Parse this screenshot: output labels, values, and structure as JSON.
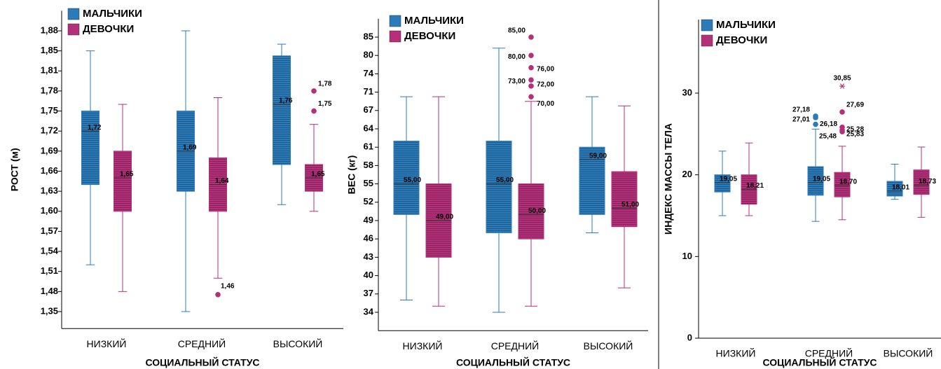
{
  "chart_data": [
    {
      "type": "boxplot",
      "y_label": "РОСТ (м)",
      "x_label": "СОЦИАЛЬНЫЙ СТАТУС",
      "categories": [
        "НИЗКИЙ",
        "СРЕДНИЙ",
        "ВЫСОКИЙ"
      ],
      "ylim": [
        1.24,
        1.91
      ],
      "yticks": [
        {
          "value": 1.35,
          "label": "1,35"
        },
        {
          "value": 1.48,
          "label": "1,48"
        },
        {
          "value": 1.51,
          "label": "1,51"
        },
        {
          "value": 1.54,
          "label": "1,54"
        },
        {
          "value": 1.57,
          "label": "1,57"
        },
        {
          "value": 1.6,
          "label": "1,60"
        },
        {
          "value": 1.63,
          "label": "1,63"
        },
        {
          "value": 1.66,
          "label": "1,66"
        },
        {
          "value": 1.69,
          "label": "1,69"
        },
        {
          "value": 1.72,
          "label": "1,72"
        },
        {
          "value": 1.75,
          "label": "1,75"
        },
        {
          "value": 1.78,
          "label": "1,78"
        },
        {
          "value": 1.81,
          "label": "1,81"
        },
        {
          "value": 1.85,
          "label": "1,85"
        },
        {
          "value": 1.88,
          "label": "1,88"
        }
      ],
      "series": [
        {
          "name": "МАЛЬЧИКИ",
          "color": "#2b7bba",
          "low": [
            1.52,
            1.35,
            1.61
          ],
          "q1": [
            1.64,
            1.63,
            1.67
          ],
          "median": [
            1.72,
            1.69,
            1.76
          ],
          "median_labels": [
            "1,72",
            "1,69",
            "1,76"
          ],
          "q3": [
            1.75,
            1.75,
            1.84
          ],
          "high": [
            1.85,
            1.88,
            1.86
          ]
        },
        {
          "name": "ДЕВОЧКИ",
          "color": "#b5307a",
          "low": [
            1.48,
            1.5,
            1.6
          ],
          "q1": [
            1.6,
            1.6,
            1.63
          ],
          "median": [
            1.65,
            1.64,
            1.65
          ],
          "median_labels": [
            "1,65",
            "1,64",
            "1,65"
          ],
          "q3": [
            1.69,
            1.68,
            1.67
          ],
          "high": [
            1.76,
            1.77,
            1.73
          ],
          "outliers": [
            [],
            [
              1.46
            ],
            [
              1.78,
              1.75
            ]
          ],
          "outlier_labels": [
            [],
            [
              "1,46"
            ],
            [
              "1,78",
              "1,75"
            ]
          ]
        }
      ]
    },
    {
      "type": "boxplot",
      "y_label": "ВЕС (кг)",
      "x_label": "СОЦИАЛЬНЫЙ СТАТУС",
      "categories": [
        "НИЗКИЙ",
        "СРЕДНИЙ",
        "ВЫСОКИЙ"
      ],
      "ylim": [
        31,
        90
      ],
      "yticks": [
        34,
        37,
        40,
        43,
        46,
        49,
        52,
        55,
        58,
        61,
        64,
        67,
        71,
        74,
        80,
        85
      ],
      "series": [
        {
          "name": "МАЛЬЧИКИ",
          "color": "#2b7bba",
          "low": [
            36,
            34,
            47
          ],
          "q1": [
            50,
            47,
            50
          ],
          "median": [
            55,
            55,
            59
          ],
          "median_labels": [
            "55,00",
            "55,00",
            "59,00"
          ],
          "q3": [
            62,
            62,
            61
          ],
          "high": [
            70,
            82,
            70
          ]
        },
        {
          "name": "ДЕВОЧКИ",
          "color": "#b5307a",
          "low": [
            35,
            35,
            38
          ],
          "q1": [
            43,
            46,
            48
          ],
          "median": [
            49,
            50,
            51
          ],
          "median_labels": [
            "49,00",
            "50,00",
            "51,00"
          ],
          "q3": [
            55,
            55,
            57
          ],
          "high": [
            70,
            69,
            68
          ],
          "outliers": [
            [],
            [
              85,
              80,
              76,
              73,
              72,
              70
            ],
            []
          ],
          "outlier_labels": [
            [],
            [
              "85,00",
              "80,00",
              "76,00",
              "73,00",
              "72,00",
              "70,00"
            ],
            []
          ]
        }
      ]
    },
    {
      "type": "boxplot",
      "y_label": "ИНДЕКС МАССЫ ТЕЛА",
      "x_label": "СОЦИАЛЬНЫЙ СТАТУС",
      "categories": [
        "НИЗКИЙ",
        "СРЕДНИЙ",
        "ВЫСОКИЙ"
      ],
      "ylim": [
        0,
        39
      ],
      "yticks": [
        0,
        10,
        20,
        30
      ],
      "series": [
        {
          "name": "МАЛЬЧИКИ",
          "color": "#2b7bba",
          "low": [
            15,
            14.3,
            17
          ],
          "q1": [
            17.9,
            17.5,
            17.4
          ],
          "median": [
            19.05,
            19.05,
            18.01
          ],
          "median_labels": [
            "19,05",
            "19,05",
            "18,01"
          ],
          "q3": [
            20,
            21,
            19.2
          ],
          "high": [
            22.9,
            25.6,
            21.3
          ],
          "outliers": [
            [],
            [
              27.18,
              26.18,
              27.01
            ],
            []
          ],
          "outlier_labels": [
            [],
            [
              "27,18",
              "26,18",
              "27,01"
            ],
            []
          ]
        },
        {
          "name": "ДЕВОЧКИ",
          "color": "#b5307a",
          "low": [
            15,
            14.5,
            14.8
          ],
          "q1": [
            16.4,
            17.3,
            17.6
          ],
          "median": [
            18.21,
            18.7,
            18.73
          ],
          "median_labels": [
            "18,21",
            "18,70",
            "18,73"
          ],
          "q3": [
            20,
            20.3,
            20.6
          ],
          "high": [
            23.9,
            23.5,
            23.4
          ],
          "outliers": [
            [],
            [
              27.69,
              25.28,
              25.48,
              25.83
            ],
            []
          ],
          "outlier_labels": [
            [],
            [
              "27,69",
              "25,28",
              "25,48",
              "25,83"
            ],
            []
          ],
          "extremes": [
            [],
            [
              30.85
            ],
            []
          ],
          "extreme_labels": [
            [],
            [
              "30,85"
            ],
            []
          ]
        }
      ]
    }
  ]
}
